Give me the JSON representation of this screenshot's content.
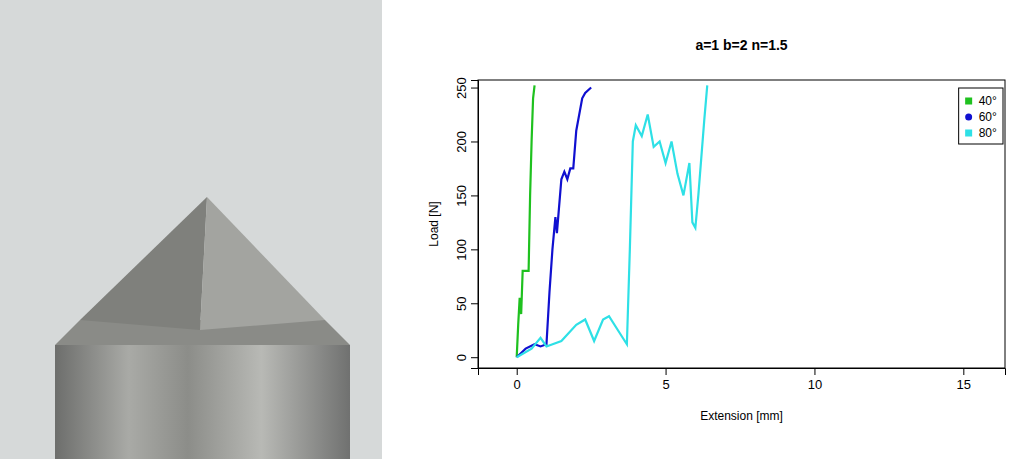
{
  "chart_data": {
    "type": "line",
    "title": "a=1 b=2 n=1.5",
    "x_label": "Extension [mm]",
    "y_label": "Load [N]",
    "xlim": [
      -1.3,
      16.4
    ],
    "xticks": [
      0,
      5,
      10,
      15
    ],
    "ylim": [
      -10,
      257
    ],
    "yticks": [
      0,
      50,
      100,
      150,
      200,
      250
    ],
    "grid": false,
    "legend": "top-right",
    "series": [
      {
        "name": "40°",
        "color": "#1fc11f",
        "marker": "square",
        "x": [
          0,
          0.05,
          0.1,
          0.15,
          0.2,
          0.25,
          0.3,
          0.4,
          0.45,
          0.5,
          0.55,
          0.6
        ],
        "values": [
          0,
          30,
          55,
          40,
          80,
          80,
          80,
          80,
          150,
          200,
          240,
          252
        ]
      },
      {
        "name": "60°",
        "color": "#1010d0",
        "marker": "circle",
        "x": [
          0,
          0.3,
          0.6,
          0.8,
          1.0,
          1.1,
          1.2,
          1.3,
          1.35,
          1.5,
          1.6,
          1.7,
          1.8,
          1.9,
          2.0,
          2.2,
          2.3,
          2.5
        ],
        "values": [
          0,
          8,
          12,
          10,
          12,
          60,
          100,
          130,
          115,
          165,
          172,
          165,
          175,
          175,
          210,
          240,
          245,
          250
        ]
      },
      {
        "name": "80°",
        "color": "#2ee0e6",
        "marker": "square",
        "x": [
          0,
          0.5,
          0.8,
          1.0,
          1.5,
          2.0,
          2.3,
          2.6,
          2.9,
          3.1,
          3.4,
          3.7,
          3.8,
          3.9,
          4.0,
          4.2,
          4.4,
          4.6,
          4.8,
          5.0,
          5.2,
          5.4,
          5.6,
          5.8,
          5.9,
          6.0,
          6.1,
          6.3,
          6.4
        ],
        "values": [
          0,
          8,
          18,
          10,
          15,
          30,
          35,
          15,
          35,
          38,
          25,
          12,
          100,
          200,
          215,
          205,
          225,
          195,
          200,
          180,
          200,
          170,
          150,
          180,
          125,
          120,
          150,
          220,
          252
        ]
      }
    ]
  }
}
